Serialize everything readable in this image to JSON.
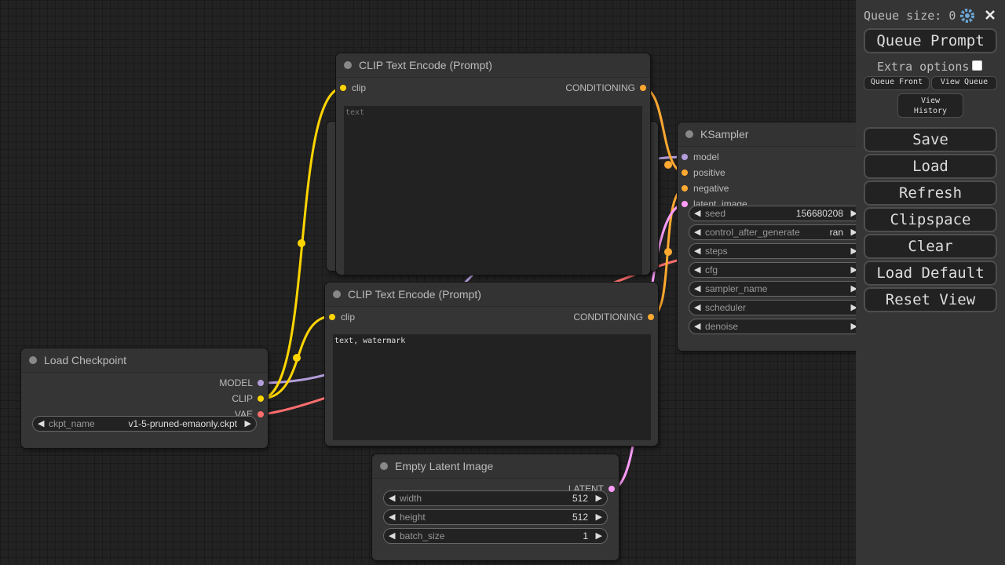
{
  "menu": {
    "queue_size": "Queue size: 0",
    "queue_prompt": "Queue Prompt",
    "extra_options": "Extra options",
    "queue_front": "Queue Front",
    "view_queue": "View Queue",
    "view_history": "View History",
    "buttons": [
      "Save",
      "Load",
      "Refresh",
      "Clipspace",
      "Clear",
      "Load Default",
      "Reset View"
    ]
  },
  "nodes": [
    {
      "title": "CLIP Text Encode (Prompt)",
      "inputs": [
        "clip"
      ],
      "outputs": [
        "CONDITIONING"
      ],
      "text": "text"
    },
    {
      "title": "CLIP Text Encode (Prompt)",
      "inputs": [
        "clip"
      ],
      "outputs": [
        "CONDITIONING"
      ],
      "text": "text, watermark"
    },
    {
      "title": "Load Checkpoint",
      "inputs": [],
      "outputs": [
        "MODEL",
        "CLIP",
        "VAE"
      ],
      "widgets": [
        {
          "name": "ckpt_name",
          "value": "v1-5-pruned-emaonly.ckpt"
        }
      ]
    },
    {
      "title": "KSampler",
      "inputs": [
        "model",
        "positive",
        "negative",
        "latent_image"
      ],
      "outputs": [],
      "widgets": [
        {
          "name": "seed",
          "value": "156680208"
        },
        {
          "name": "control_after_generate",
          "value": "ran"
        },
        {
          "name": "steps"
        },
        {
          "name": "cfg"
        },
        {
          "name": "sampler_name"
        },
        {
          "name": "scheduler"
        },
        {
          "name": "denoise"
        }
      ]
    },
    {
      "title": "Empty Latent Image",
      "inputs": [],
      "outputs": [
        "LATENT"
      ],
      "widgets": [
        {
          "name": "width",
          "value": "512"
        },
        {
          "name": "height",
          "value": "512"
        },
        {
          "name": "batch_size",
          "value": "1"
        }
      ]
    }
  ]
}
